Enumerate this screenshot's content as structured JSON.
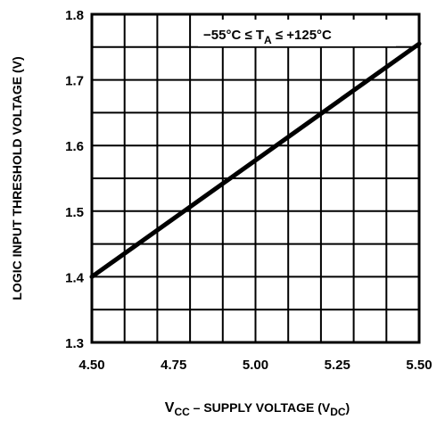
{
  "chart_data": {
    "type": "line",
    "x_ticks": [
      "4.50",
      "4.75",
      "5.00",
      "5.25",
      "5.50"
    ],
    "y_ticks": [
      "1.3",
      "1.4",
      "1.5",
      "1.6",
      "1.7",
      "1.8"
    ],
    "xlim": [
      4.5,
      5.5
    ],
    "ylim": [
      1.3,
      1.8
    ],
    "x_grid_divisions": 10,
    "y_grid_divisions": 10,
    "grid": true,
    "series": [
      {
        "x": [
          4.5,
          5.5
        ],
        "y": [
          1.4,
          1.755
        ]
      }
    ],
    "xlabel": {
      "main": "V",
      "sub1": "CC",
      "middle": " – SUPPLY VOLTAGE (V",
      "sub2": "DC",
      "end": ")"
    },
    "ylabel": "LOGIC INPUT THRESHOLD VOLTAGE (V)",
    "annotation": {
      "pre": "−55°C ≤ T",
      "sub": "A",
      "post": " ≤ +125°C"
    }
  }
}
